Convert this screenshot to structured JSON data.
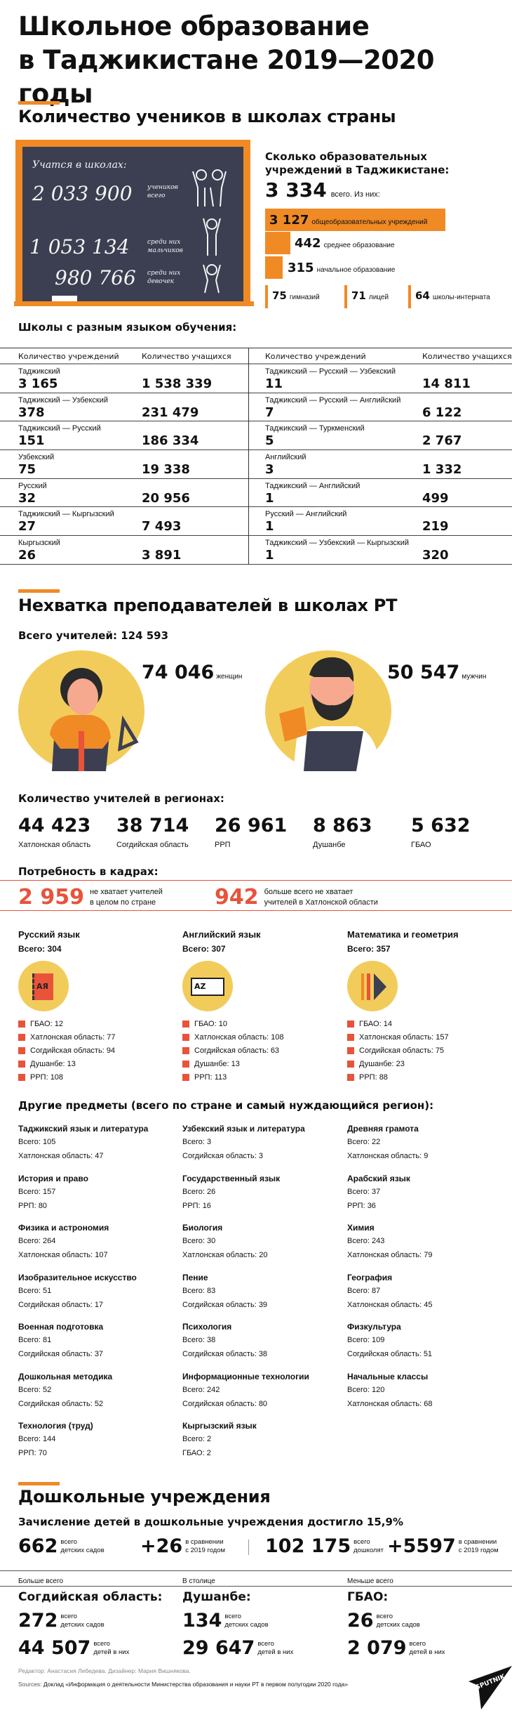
{
  "title": [
    "Школьное образование",
    "в Таджикистане 2019—2020 годы"
  ],
  "students": {
    "heading": "Количество учеников в школах страны",
    "board_caption": "Учатся в школах:",
    "total": {
      "value": "2 033 900",
      "label1": "учеников",
      "label2": "всего"
    },
    "boys": {
      "value": "1 053 134",
      "label1": "среди них",
      "label2": "мальчиков"
    },
    "girls": {
      "value": "980 766",
      "label1": "среди них",
      "label2": "девочек"
    }
  },
  "institutions": {
    "heading": "Сколько образовательных учреждений в Таджикистане:",
    "total": "3 334",
    "total_label": "всего. Из них:",
    "items": [
      {
        "value": "3 127",
        "label": "общеобразовательных учреждений",
        "count": 3127
      },
      {
        "value": "442",
        "label": "среднее образование",
        "count": 442
      },
      {
        "value": "315",
        "label": "начальное образование",
        "count": 315
      },
      {
        "value": "75",
        "label": "гимназий",
        "count": 75
      },
      {
        "value": "71",
        "label": "лицей",
        "count": 71
      },
      {
        "value": "64",
        "label": "школы-интерната",
        "count": 64
      }
    ]
  },
  "languages": {
    "heading": "Школы с разным языком обучения:",
    "col_institutions": "Количество учреждений",
    "col_students": "Количество учащихся",
    "left": [
      {
        "lang": "Таджикский",
        "inst": "3 165",
        "stud": "1 538 339"
      },
      {
        "lang": "Таджикский — Узбекский",
        "inst": "378",
        "stud": "231 479"
      },
      {
        "lang": "Таджикский — Русский",
        "inst": "151",
        "stud": "186 334"
      },
      {
        "lang": "Узбекский",
        "inst": "75",
        "stud": "19 338"
      },
      {
        "lang": "Русский",
        "inst": "32",
        "stud": "20 956"
      },
      {
        "lang": "Таджикский — Кыргызский",
        "inst": "27",
        "stud": "7 493"
      },
      {
        "lang": "Кыргызский",
        "inst": "26",
        "stud": "3 891"
      }
    ],
    "right": [
      {
        "lang": "Таджикский — Русский — Узбекский",
        "inst": "11",
        "stud": "14 811"
      },
      {
        "lang": "Таджикский — Русский — Английский",
        "inst": "7",
        "stud": "6 122"
      },
      {
        "lang": "Таджикский — Туркменский",
        "inst": "5",
        "stud": "2 767"
      },
      {
        "lang": "Английский",
        "inst": "3",
        "stud": "1 332"
      },
      {
        "lang": "Таджикский — Английский",
        "inst": "1",
        "stud": "499"
      },
      {
        "lang": "Русский — Английский",
        "inst": "1",
        "stud": "219"
      },
      {
        "lang": "Таджикский — Узбекский — Кыргызский",
        "inst": "1",
        "stud": "320"
      }
    ]
  },
  "teachers": {
    "heading": "Нехватка преподавателей в школах РТ",
    "total": "Всего учителей: 124 593",
    "women": {
      "value": "74 046",
      "label": "женщин"
    },
    "men": {
      "value": "50 547",
      "label": "мужчин"
    },
    "regions_heading": "Количество учителей в регионах:",
    "regions": [
      {
        "value": "44 423",
        "label": "Хатлонская область"
      },
      {
        "value": "38 714",
        "label": "Согдийская область"
      },
      {
        "value": "26 961",
        "label": "РРП"
      },
      {
        "value": "8 863",
        "label": "Душанбе"
      },
      {
        "value": "5 632",
        "label": "ГБАО"
      }
    ]
  },
  "need": {
    "heading": "Потребность в кадрах:",
    "total": {
      "value": "2 959",
      "label": "не хватает учителей в целом по стране"
    },
    "khatlon": {
      "value": "942",
      "label": "больше всего не хватает учителей в Хатлонской области"
    },
    "colors": {
      "accent": "#e8533a",
      "orange": "#f08a24",
      "yellow": "#f2cc5b",
      "board": "#3b3f51"
    },
    "main_subjects": [
      {
        "title": "Русский язык",
        "total": "Всего: 304",
        "icon": "russian-book-icon",
        "icon_text": "АЯ",
        "regions": [
          "ГБАО: 12",
          "Хатлонская область: 77",
          "Согдийская область: 94",
          "Душанбе: 13",
          "РРП: 108"
        ]
      },
      {
        "title": "Английский язык",
        "total": "Всего: 307",
        "icon": "open-book-icon",
        "icon_text": "AZ",
        "regions": [
          "ГБАО: 10",
          "Хатлонская область: 108",
          "Согдийская область: 63",
          "Душанбе: 13",
          "РРП: 113"
        ]
      },
      {
        "title": "Математика и геометрия",
        "total": "Всего: 357",
        "icon": "pencil-ruler-icon",
        "icon_text": "",
        "regions": [
          "ГБАО: 14",
          "Хатлонская область: 157",
          "Согдийская область: 75",
          "Душанбе: 23",
          "РРП: 88"
        ]
      }
    ]
  },
  "other_subjects": {
    "heading": "Другие предметы (всего по стране и самый нуждающийся регион):",
    "items": [
      {
        "title": "Таджикский язык и литература",
        "total": "Всего: 105",
        "region": "Хатлонская область: 47"
      },
      {
        "title": "Узбекский язык и литература",
        "total": "Всего: 3",
        "region": "Согдийская область: 3"
      },
      {
        "title": "Древняя грамота",
        "total": "Всего: 22",
        "region": "Хатлонская область: 9"
      },
      {
        "title": "История и право",
        "total": "Всего: 157",
        "region": "РРП: 80"
      },
      {
        "title": "Государственный язык",
        "total": "Всего: 26",
        "region": "РРП: 16"
      },
      {
        "title": "Арабский язык",
        "total": "Всего: 37",
        "region": "РРП: 36"
      },
      {
        "title": "Физика и астрономия",
        "total": "Всего: 264",
        "region": "Хатлонская область: 107"
      },
      {
        "title": "Биология",
        "total": "Всего: 30",
        "region": "Хатлонская область: 20"
      },
      {
        "title": "Химия",
        "total": "Всего: 243",
        "region": "Хатлонская область: 79"
      },
      {
        "title": "Изобразительное искусство",
        "total": "Всего: 51",
        "region": "Согдийская область: 17"
      },
      {
        "title": "Пение",
        "total": "Всего: 83",
        "region": "Согдийская область: 39"
      },
      {
        "title": "География",
        "total": "Всего: 87",
        "region": "Хатлонская область: 45"
      },
      {
        "title": "Военная подготовка",
        "total": "Всего: 81",
        "region": "Согдийская область: 37"
      },
      {
        "title": "Психология",
        "total": "Всего: 38",
        "region": "Согдийская область: 38"
      },
      {
        "title": "Физкультура",
        "total": "Всего: 109",
        "region": "Согдийская область: 51"
      },
      {
        "title": "Дошкольная методика",
        "total": "Всего: 52",
        "region": "Согдийская область: 52"
      },
      {
        "title": "Информационные технологии",
        "total": "Всего: 242",
        "region": "Согдийская область: 80"
      },
      {
        "title": "Начальные классы",
        "total": "Всего: 120",
        "region": "Хатлонская область: 68"
      },
      {
        "title": "Технология (труд)",
        "total": "Всего: 144",
        "region": "РРП: 70"
      },
      {
        "title": "Кыргызский язык",
        "total": "Всего: 2",
        "region": "ГБАО: 2"
      }
    ]
  },
  "preschool": {
    "heading": "Дошкольные учреждения",
    "subheading": "Зачисление детей в дошкольные учреждения достигло 15,9%",
    "stats": [
      {
        "value": "662",
        "l1": "всего",
        "l2": "детских садов"
      },
      {
        "value": "+26",
        "l1": "в сравнении",
        "l2": "с 2019 годом"
      },
      {
        "value": "102 175",
        "l1": "всего",
        "l2": "дошколят"
      },
      {
        "value": "+5597",
        "l1": "в сравнении",
        "l2": "с 2019 годом"
      }
    ],
    "regions": [
      {
        "header": "Больше всего",
        "name": "Согдийская область:",
        "kg": "272",
        "kg_l1": "всего",
        "kg_l2": "детских садов",
        "kids": "44 507",
        "kids_l1": "всего",
        "kids_l2": "детей в них"
      },
      {
        "header": "В столице",
        "name": "Душанбе:",
        "kg": "134",
        "kg_l1": "всего",
        "kg_l2": "детских садов",
        "kids": "29 647",
        "kids_l1": "всего",
        "kids_l2": "детей в них"
      },
      {
        "header": "Меньше всего",
        "name": "ГБАО:",
        "kg": "26",
        "kg_l1": "всего",
        "kg_l2": "детских садов",
        "kids": "2 079",
        "kids_l1": "всего",
        "kids_l2": "детей в них"
      }
    ]
  },
  "footer": {
    "credits": "Редактор: Анастасия Лебедева. Дизайнер: Мария Вишнякова.",
    "sources_label": "Sources:",
    "sources": "Доклад «Информация о деятельности Министерства образования и науки РТ в первом полугодии 2020 года»",
    "logo": "SPUTNIK"
  }
}
